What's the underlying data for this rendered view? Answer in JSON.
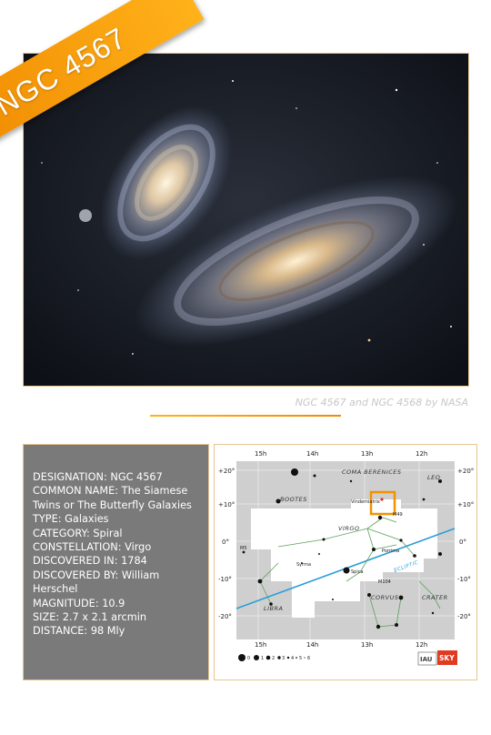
{
  "banner": {
    "title": "NGC 4567"
  },
  "photo": {
    "credit": "NGC 4567 and NGC 4568 by NASA"
  },
  "info": {
    "lines": [
      "DESIGNATION: NGC 4567",
      "COMMON NAME: The Siamese",
      "Twins or The Butterfly Galaxies",
      "TYPE: Galaxies",
      "CATEGORY: Spiral",
      "CONSTELLATION: Virgo",
      "DISCOVERED IN: 1784",
      "DISCOVERED BY: William",
      "Herschel",
      "MAGNITUDE: 10.9",
      "SIZE: 2.7 x 2.1 arcmin",
      "DISTANCE: 98 Mly"
    ]
  },
  "map": {
    "ra_labels": [
      "15h",
      "14h",
      "13h",
      "12h"
    ],
    "ra_labels_bottom": [
      "15h",
      "14h",
      "13h",
      "12h"
    ],
    "dec_labels_left": [
      "+20°",
      "+10°",
      "0°",
      "-10°",
      "-20°"
    ],
    "dec_labels_right": [
      "+20°",
      "+10°",
      "0°",
      "-10°",
      "-20°"
    ],
    "constellations": [
      "COMA BERENICES",
      "LEO",
      "BOOTES",
      "VIRGO",
      "LIBRA",
      "CORVUS",
      "CRATER"
    ],
    "ecliptic": "ECLIPTIC",
    "objects": [
      "Vindemiatrix",
      "M49",
      "M104",
      "Spica",
      "Syrma",
      "Porrima",
      "M5"
    ],
    "magnitude_scale": [
      "0",
      "1",
      "2",
      "3",
      "4",
      "5",
      "6"
    ],
    "logo_left": "IAU",
    "logo_right": "SKY"
  },
  "colors": {
    "accent": "#f39200",
    "info_bg": "#7a7a7a",
    "ecliptic": "#2a9ed8"
  }
}
